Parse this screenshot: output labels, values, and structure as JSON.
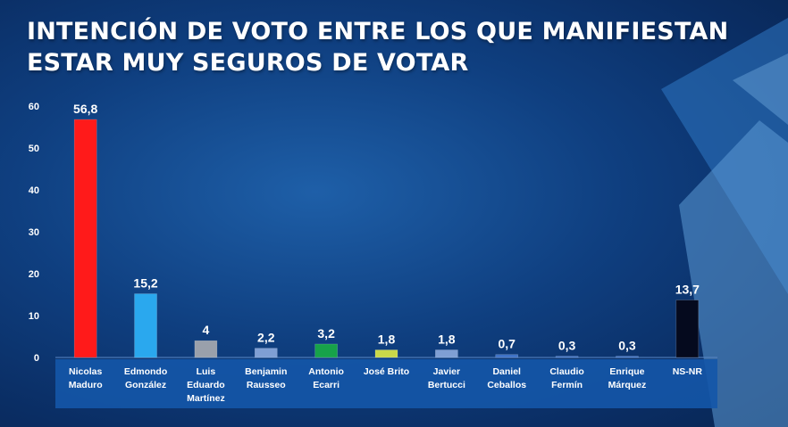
{
  "title": "INTENCIÓN DE VOTO ENTRE LOS QUE MANIFIESTAN ESTAR MUY SEGUROS DE VOTAR",
  "colors": {
    "background": "#0f3f80",
    "label_band": "#1456a8",
    "text": "#ffffff"
  },
  "chart_data": {
    "type": "bar",
    "title": "INTENCIÓN DE VOTO ENTRE LOS QUE MANIFIESTAN ESTAR MUY SEGUROS DE VOTAR",
    "categories": [
      [
        "Nicolas",
        "Maduro"
      ],
      [
        "Edmondo",
        "González"
      ],
      [
        "Luis",
        "Eduardo",
        "Martínez"
      ],
      [
        "Benjamin",
        "Rausseo"
      ],
      [
        "Antonio",
        "Ecarri"
      ],
      [
        "José Brito"
      ],
      [
        "Javier",
        "Bertucci"
      ],
      [
        "Daniel",
        "Ceballos"
      ],
      [
        "Claudio",
        "Fermín"
      ],
      [
        "Enrique",
        "Márquez"
      ],
      [
        "NS-NR"
      ]
    ],
    "values": [
      56.8,
      15.2,
      4,
      2.2,
      3.2,
      1.8,
      1.8,
      0.7,
      0.3,
      0.3,
      13.7
    ],
    "value_labels": [
      "56,8",
      "15,2",
      "4",
      "2,2",
      "3,2",
      "1,8",
      "1,8",
      "0,7",
      "0,3",
      "0,3",
      "13,7"
    ],
    "bar_colors": [
      "#ff1a1a",
      "#2aa8ee",
      "#9aa0ab",
      "#7f9fd4",
      "#17a24a",
      "#c9d84a",
      "#7f9fd4",
      "#3f73c7",
      "#3f73c7",
      "#3f73c7",
      "#050a1e"
    ],
    "ylim": [
      0,
      60
    ],
    "yticks": [
      0,
      10,
      20,
      30,
      40,
      50,
      60
    ],
    "xlabel": "",
    "ylabel": "",
    "grid": false,
    "legend": "none"
  }
}
